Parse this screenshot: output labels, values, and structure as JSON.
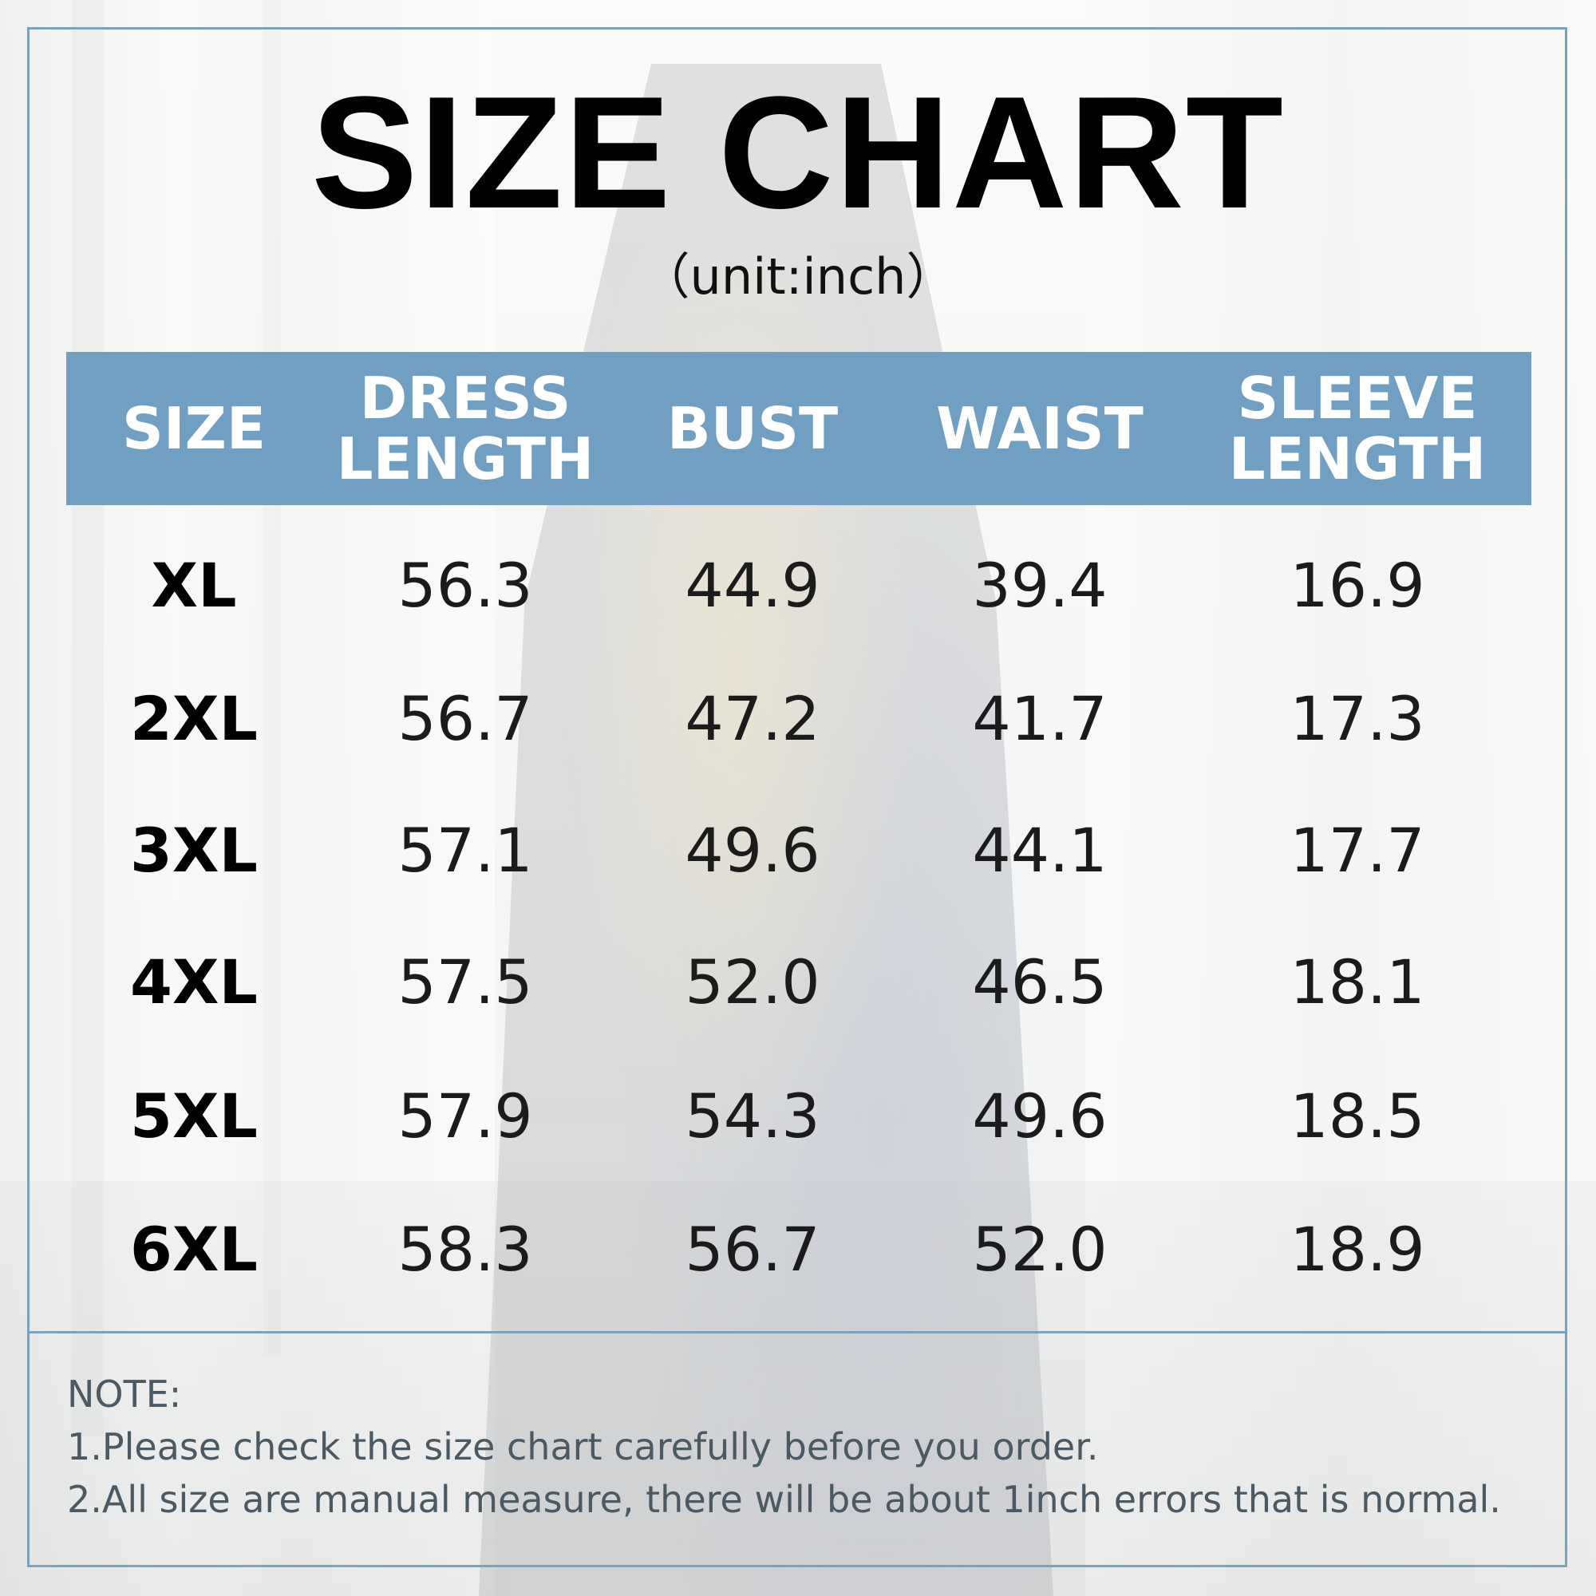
{
  "title": "SIZE CHART",
  "subtitle": "（unit:inch）",
  "table": {
    "headers": [
      "SIZE",
      "DRESS\nLENGTH",
      "BUST",
      "WAIST",
      "SLEEVE\nLENGTH"
    ],
    "rows": [
      [
        "XL",
        "56.3",
        "44.9",
        "39.4",
        "16.9"
      ],
      [
        "2XL",
        "56.7",
        "47.2",
        "41.7",
        "17.3"
      ],
      [
        "3XL",
        "57.1",
        "49.6",
        "44.1",
        "17.7"
      ],
      [
        "4XL",
        "57.5",
        "52.0",
        "46.5",
        "18.1"
      ],
      [
        "5XL",
        "57.9",
        "54.3",
        "49.6",
        "18.5"
      ],
      [
        "6XL",
        "58.3",
        "56.7",
        "52.0",
        "18.9"
      ]
    ]
  },
  "note": {
    "heading": "NOTE:",
    "line1": "1.Please check the size chart carefully before you order.",
    "line2": "2.All size are manual measure, there will be about 1inch errors that is normal."
  },
  "colors": {
    "header_band": "#709fc1",
    "border": "#7ba2bd",
    "note_text": "#4b5963"
  }
}
